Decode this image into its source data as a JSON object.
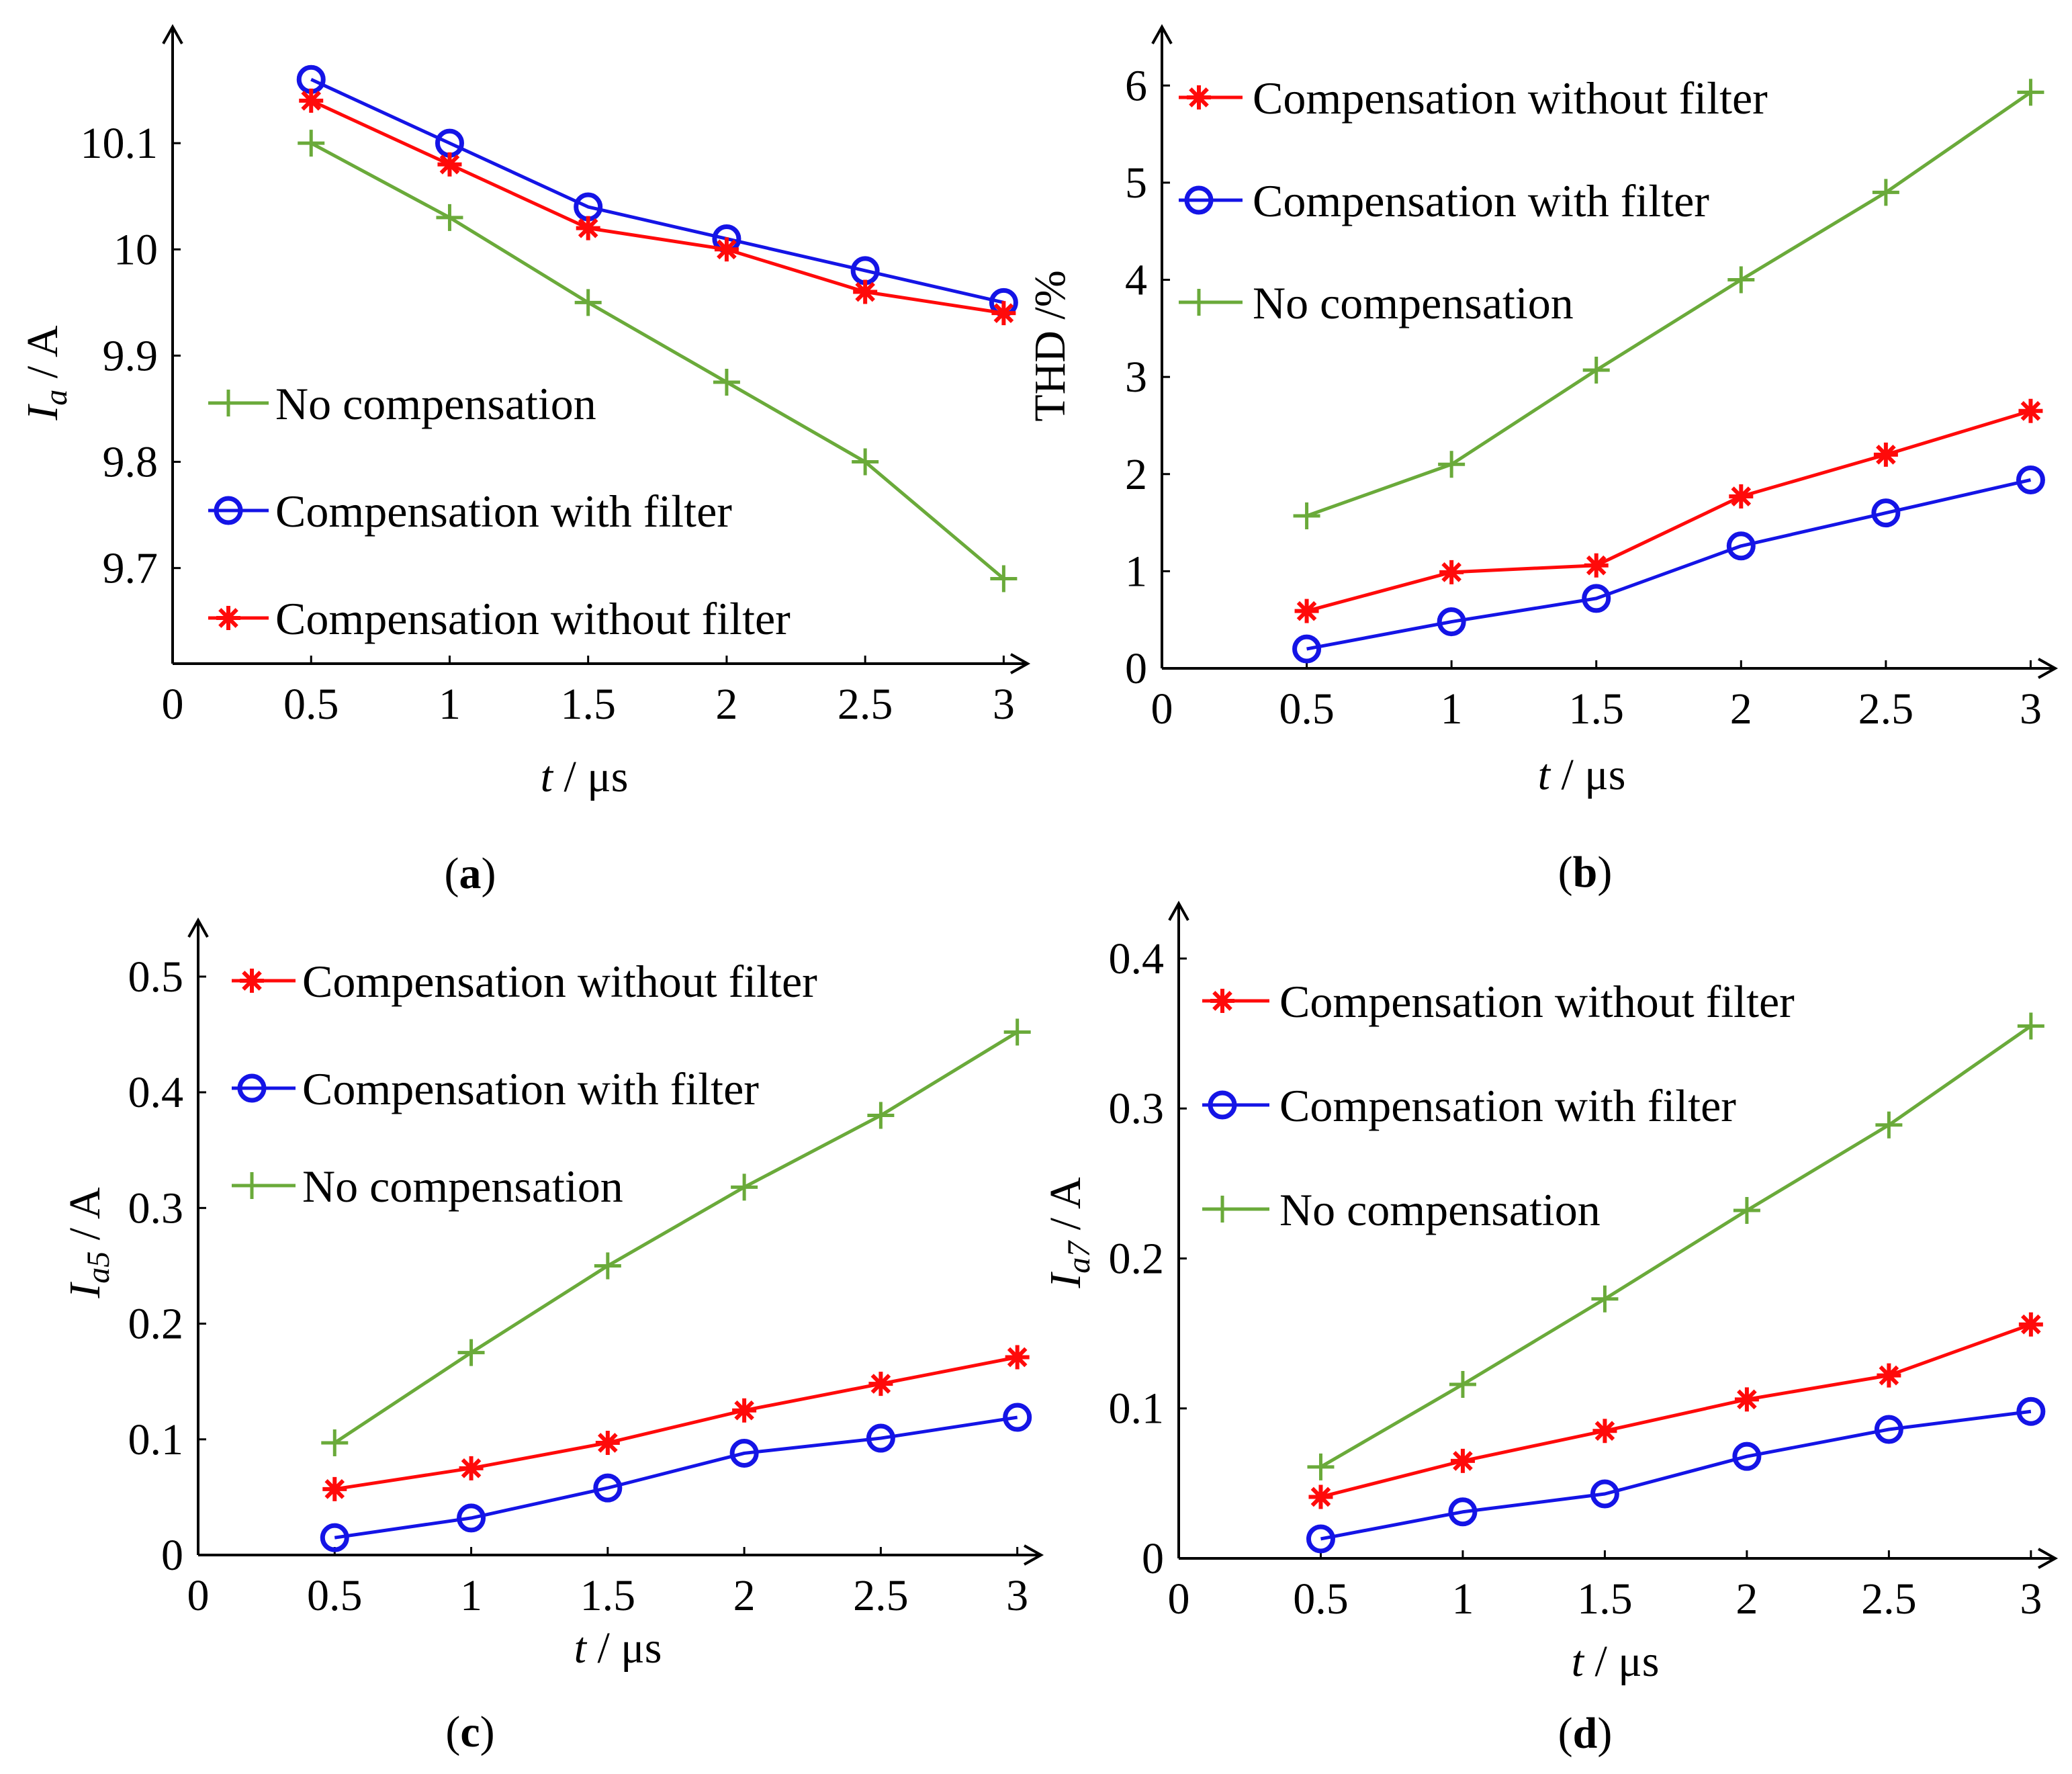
{
  "colors": {
    "no_comp": "#6aaa3a",
    "with_filter": "#1414e6",
    "without_filter": "#ff0a0a",
    "axis": "#000000"
  },
  "chart_data": [
    {
      "id": "a",
      "type": "line",
      "caption_paren_open": "(",
      "caption_letter": "a",
      "caption_paren_close": ")",
      "ylabel_main": "I",
      "ylabel_sub": "a",
      "ylabel_unit": " / A",
      "xlabel_main": "t",
      "xlabel_unit": " / μs",
      "xlim": [
        0,
        3.05
      ],
      "ylim": [
        9.61,
        10.2
      ],
      "xticks": [
        0,
        0.5,
        1,
        1.5,
        2,
        2.5,
        3
      ],
      "xtick_labels": [
        "0",
        "0.5",
        "1",
        "1.5",
        "2",
        "2.5",
        "3"
      ],
      "yticks": [
        9.7,
        9.8,
        9.9,
        10,
        10.1
      ],
      "ytick_labels": [
        "9.7",
        "9.8",
        "9.9",
        "10",
        "10.1"
      ],
      "x": [
        0.5,
        1,
        1.5,
        2,
        2.5,
        3
      ],
      "series": [
        {
          "key": "no_comp",
          "name": "No compensation",
          "marker": "plus",
          "values": [
            10.1,
            10.03,
            9.95,
            9.875,
            9.8,
            9.69
          ]
        },
        {
          "key": "with_filter",
          "name": "Compensation with filter",
          "marker": "circle",
          "values": [
            10.16,
            10.1,
            10.04,
            10.01,
            9.98,
            9.95
          ]
        },
        {
          "key": "without_filter",
          "name": "Compensation without filter",
          "marker": "star",
          "values": [
            10.14,
            10.08,
            10.02,
            10.0,
            9.96,
            9.94
          ]
        }
      ],
      "legend_order": [
        "no_comp",
        "with_filter",
        "without_filter"
      ]
    },
    {
      "id": "b",
      "type": "line",
      "caption_paren_open": "(",
      "caption_letter": "b",
      "caption_paren_close": ")",
      "ylabel_main": "THD",
      "ylabel_sub": "",
      "ylabel_unit": " /%",
      "xlabel_main": "t",
      "xlabel_unit": " / μs",
      "xlim": [
        0,
        3.05
      ],
      "ylim": [
        0,
        6.5
      ],
      "xticks": [
        0,
        0.5,
        1,
        1.5,
        2,
        2.5,
        3
      ],
      "xtick_labels": [
        "0",
        "0.5",
        "1",
        "1.5",
        "2",
        "2.5",
        "3"
      ],
      "yticks": [
        0,
        1,
        2,
        3,
        4,
        5,
        6
      ],
      "ytick_labels": [
        "0",
        "1",
        "2",
        "3",
        "4",
        "5",
        "6"
      ],
      "x": [
        0.5,
        1,
        1.5,
        2,
        2.5,
        3
      ],
      "series": [
        {
          "key": "no_comp",
          "name": "No compensation",
          "marker": "plus",
          "values": [
            1.57,
            2.1,
            3.07,
            4.0,
            4.9,
            5.93
          ]
        },
        {
          "key": "with_filter",
          "name": "Compensation with filter",
          "marker": "circle",
          "values": [
            0.2,
            0.48,
            0.72,
            1.26,
            1.6,
            1.94
          ]
        },
        {
          "key": "without_filter",
          "name": "Compensation without filter",
          "marker": "star",
          "values": [
            0.59,
            0.99,
            1.06,
            1.77,
            2.2,
            2.65
          ]
        }
      ],
      "legend_order": [
        "without_filter",
        "with_filter",
        "no_comp"
      ]
    },
    {
      "id": "c",
      "type": "line",
      "caption_paren_open": "(",
      "caption_letter": "c",
      "caption_paren_close": ")",
      "ylabel_main": "I",
      "ylabel_sub": "a5",
      "ylabel_unit": " / A",
      "xlabel_main": "t",
      "xlabel_unit": " / μs",
      "xlim": [
        0,
        3.05
      ],
      "ylim": [
        0,
        0.54
      ],
      "xticks": [
        0,
        0.5,
        1,
        1.5,
        2,
        2.5,
        3
      ],
      "xtick_labels": [
        "0",
        "0.5",
        "1",
        "1.5",
        "2",
        "2.5",
        "3"
      ],
      "yticks": [
        0,
        0.1,
        0.2,
        0.3,
        0.4,
        0.5
      ],
      "ytick_labels": [
        "0",
        "0.1",
        "0.2",
        "0.3",
        "0.4",
        "0.5"
      ],
      "x": [
        0.5,
        1,
        1.5,
        2,
        2.5,
        3
      ],
      "series": [
        {
          "key": "no_comp",
          "name": "No compensation",
          "marker": "plus",
          "values": [
            0.097,
            0.175,
            0.25,
            0.318,
            0.38,
            0.452
          ]
        },
        {
          "key": "with_filter",
          "name": "Compensation with filter",
          "marker": "circle",
          "values": [
            0.015,
            0.032,
            0.058,
            0.088,
            0.101,
            0.119
          ]
        },
        {
          "key": "without_filter",
          "name": "Compensation without filter",
          "marker": "star",
          "values": [
            0.057,
            0.075,
            0.097,
            0.125,
            0.148,
            0.171
          ]
        }
      ],
      "legend_order": [
        "without_filter",
        "with_filter",
        "no_comp"
      ]
    },
    {
      "id": "d",
      "type": "line",
      "caption_paren_open": "(",
      "caption_letter": "d",
      "caption_paren_close": ")",
      "ylabel_main": "I",
      "ylabel_sub": "a7",
      "ylabel_unit": " / A",
      "xlabel_main": "t",
      "xlabel_unit": " / μs",
      "xlim": [
        0,
        3.05
      ],
      "ylim": [
        0,
        0.43
      ],
      "xticks": [
        0,
        0.5,
        1,
        1.5,
        2,
        2.5,
        3
      ],
      "xtick_labels": [
        "0",
        "0.5",
        "1",
        "1.5",
        "2",
        "2.5",
        "3"
      ],
      "yticks": [
        0,
        0.1,
        0.2,
        0.3,
        0.4
      ],
      "ytick_labels": [
        "0",
        "0.1",
        "0.2",
        "0.3",
        "0.4"
      ],
      "x": [
        0.5,
        1,
        1.5,
        2,
        2.5,
        3
      ],
      "series": [
        {
          "key": "no_comp",
          "name": "No compensation",
          "marker": "plus",
          "values": [
            0.061,
            0.116,
            0.173,
            0.232,
            0.289,
            0.355
          ]
        },
        {
          "key": "with_filter",
          "name": "Compensation with filter",
          "marker": "circle",
          "values": [
            0.013,
            0.031,
            0.043,
            0.068,
            0.086,
            0.098
          ]
        },
        {
          "key": "without_filter",
          "name": "Compensation without filter",
          "marker": "star",
          "values": [
            0.041,
            0.065,
            0.085,
            0.106,
            0.122,
            0.156
          ]
        }
      ],
      "legend_order": [
        "without_filter",
        "with_filter",
        "no_comp"
      ]
    }
  ]
}
